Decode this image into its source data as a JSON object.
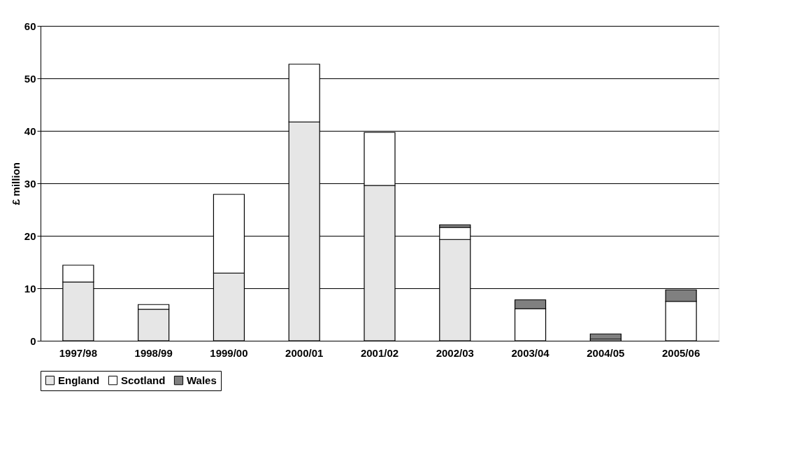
{
  "chart_data": {
    "type": "bar",
    "stacked": true,
    "ylabel": "£ million",
    "categories": [
      "1997/98",
      "1998/99",
      "1999/00",
      "2000/01",
      "2001/02",
      "2002/03",
      "2003/04",
      "2004/05",
      "2005/06"
    ],
    "series": [
      {
        "name": "England",
        "color": "#e6e6e6",
        "values": [
          11.2,
          6.0,
          12.9,
          41.7,
          29.6,
          19.3,
          null,
          null,
          null
        ]
      },
      {
        "name": "Scotland",
        "color": "#ffffff",
        "values": [
          3.2,
          0.9,
          15.0,
          11.0,
          10.1,
          2.3,
          6.1,
          0.3,
          7.5
        ]
      },
      {
        "name": "Wales",
        "color": "#808080",
        "values": [
          null,
          null,
          null,
          null,
          null,
          0.5,
          1.7,
          1.0,
          2.2
        ]
      }
    ],
    "ylim": [
      0,
      60
    ],
    "yticks": [
      0,
      10,
      20,
      30,
      40,
      50,
      60
    ],
    "grid": "y",
    "legend": "bottom"
  }
}
